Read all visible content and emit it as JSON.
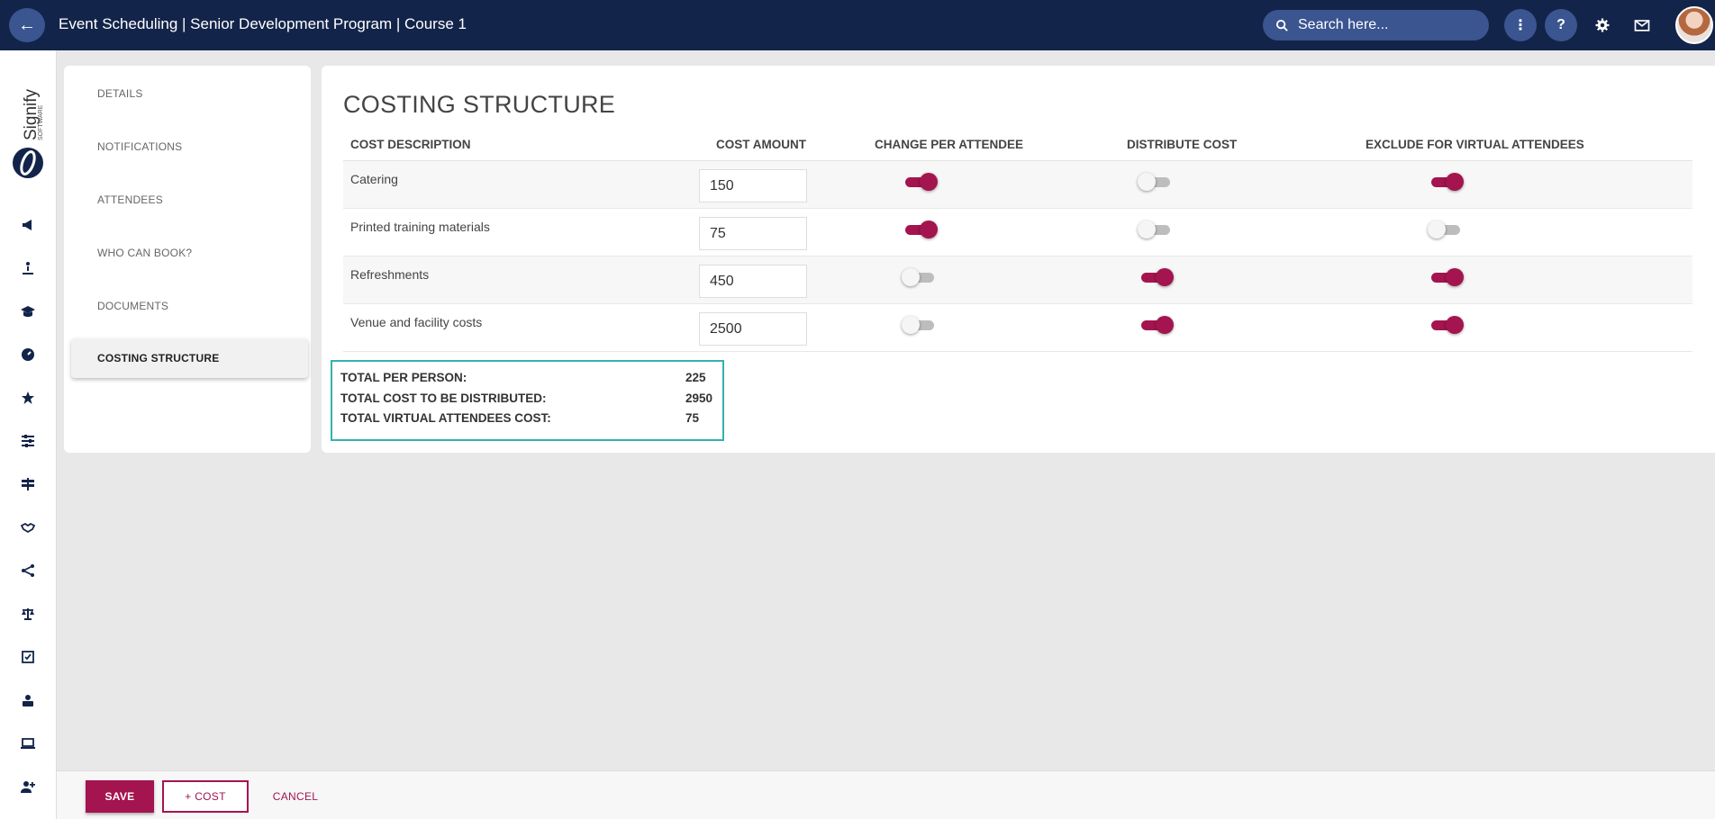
{
  "topbar": {
    "back_label": "←",
    "title": "Event Scheduling | Senior Development Program | Course 1",
    "search_placeholder": "Search here...",
    "more_label": "⋮",
    "help_label": "?"
  },
  "logo": {
    "brand": "Signify",
    "sub": "SOFTWARE"
  },
  "nav": {
    "items": [
      {
        "label": "DETAILS"
      },
      {
        "label": "NOTIFICATIONS"
      },
      {
        "label": "ATTENDEES"
      },
      {
        "label": "WHO CAN BOOK?"
      },
      {
        "label": "DOCUMENTS"
      },
      {
        "label": "COSTING STRUCTURE"
      }
    ],
    "active_index": 5
  },
  "main": {
    "title": "COSTING STRUCTURE",
    "columns": {
      "description": "COST DESCRIPTION",
      "amount": "COST AMOUNT",
      "per_attendee": "CHANGE PER ATTENDEE",
      "distribute": "DISTRIBUTE COST",
      "exclude_virtual": "EXCLUDE FOR VIRTUAL ATTENDEES"
    },
    "rows": [
      {
        "description": "Catering",
        "amount": "150",
        "per_attendee": true,
        "distribute": false,
        "exclude_virtual": true
      },
      {
        "description": "Printed training materials",
        "amount": "75",
        "per_attendee": true,
        "distribute": false,
        "exclude_virtual": false
      },
      {
        "description": "Refreshments",
        "amount": "450",
        "per_attendee": false,
        "distribute": true,
        "exclude_virtual": true
      },
      {
        "description": "Venue and facility costs",
        "amount": "2500",
        "per_attendee": false,
        "distribute": true,
        "exclude_virtual": true
      }
    ],
    "totals": {
      "per_person_label": "TOTAL PER PERSON:",
      "per_person_value": "225",
      "distributed_label": "TOTAL COST TO BE DISTRIBUTED:",
      "distributed_value": "2950",
      "virtual_label": "TOTAL VIRTUAL ATTENDEES COST:",
      "virtual_value": "75"
    }
  },
  "footer": {
    "save_label": "SAVE",
    "add_cost_label": "+ COST",
    "cancel_label": "CANCEL"
  },
  "colors": {
    "topbar": "#13244a",
    "accent": "#a4144f",
    "totals_border": "#36b0b0"
  }
}
